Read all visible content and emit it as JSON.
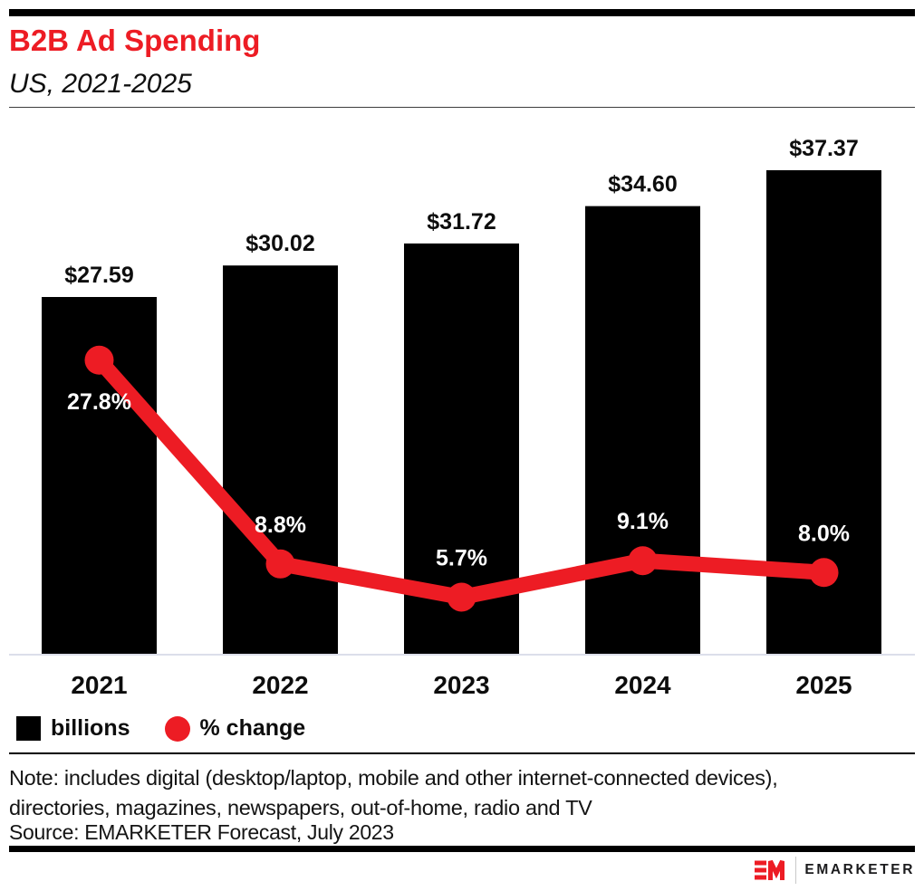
{
  "header": {
    "title": "B2B Ad Spending",
    "subtitle": "US, 2021-2025"
  },
  "colors": {
    "accent_red": "#ed1c24",
    "bar_black": "#000000",
    "baseline_gray": "#dcdfea"
  },
  "chart_data": {
    "type": "bar",
    "title": "B2B Ad Spending",
    "subtitle": "US, 2021-2025",
    "categories": [
      "2021",
      "2022",
      "2023",
      "2024",
      "2025"
    ],
    "series": [
      {
        "name": "billions",
        "type": "bar",
        "unit": "USD billions",
        "values": [
          27.59,
          30.02,
          31.72,
          34.6,
          37.37
        ],
        "labels": [
          "$27.59",
          "$30.02",
          "$31.72",
          "$34.60",
          "$37.37"
        ],
        "color": "#000000"
      },
      {
        "name": "% change",
        "type": "line",
        "unit": "percent",
        "values": [
          27.8,
          8.8,
          5.7,
          9.1,
          8.0
        ],
        "labels": [
          "27.8%",
          "8.8%",
          "5.7%",
          "9.1%",
          "8.0%"
        ],
        "color": "#ed1c24",
        "label_positions": [
          "below",
          "above",
          "above",
          "above",
          "above"
        ]
      }
    ],
    "axes": {
      "y_axis_visible": false,
      "grid": false,
      "bar_value_range": [
        0,
        41
      ],
      "pct_value_range": [
        0,
        49
      ]
    },
    "legend_position": "bottom-left"
  },
  "legend": {
    "items": [
      {
        "label": "billions",
        "swatch": "square",
        "color": "#000000"
      },
      {
        "label": "% change",
        "swatch": "circle",
        "color": "#ed1c24"
      }
    ]
  },
  "note": {
    "lines": [
      "Note: includes digital (desktop/laptop, mobile and other internet-connected devices),",
      "directories, magazines, newspapers, out-of-home, radio and TV"
    ]
  },
  "source": "Source: EMARKETER Forecast, July 2023",
  "footer": {
    "wordmark": "EMARKETER"
  }
}
